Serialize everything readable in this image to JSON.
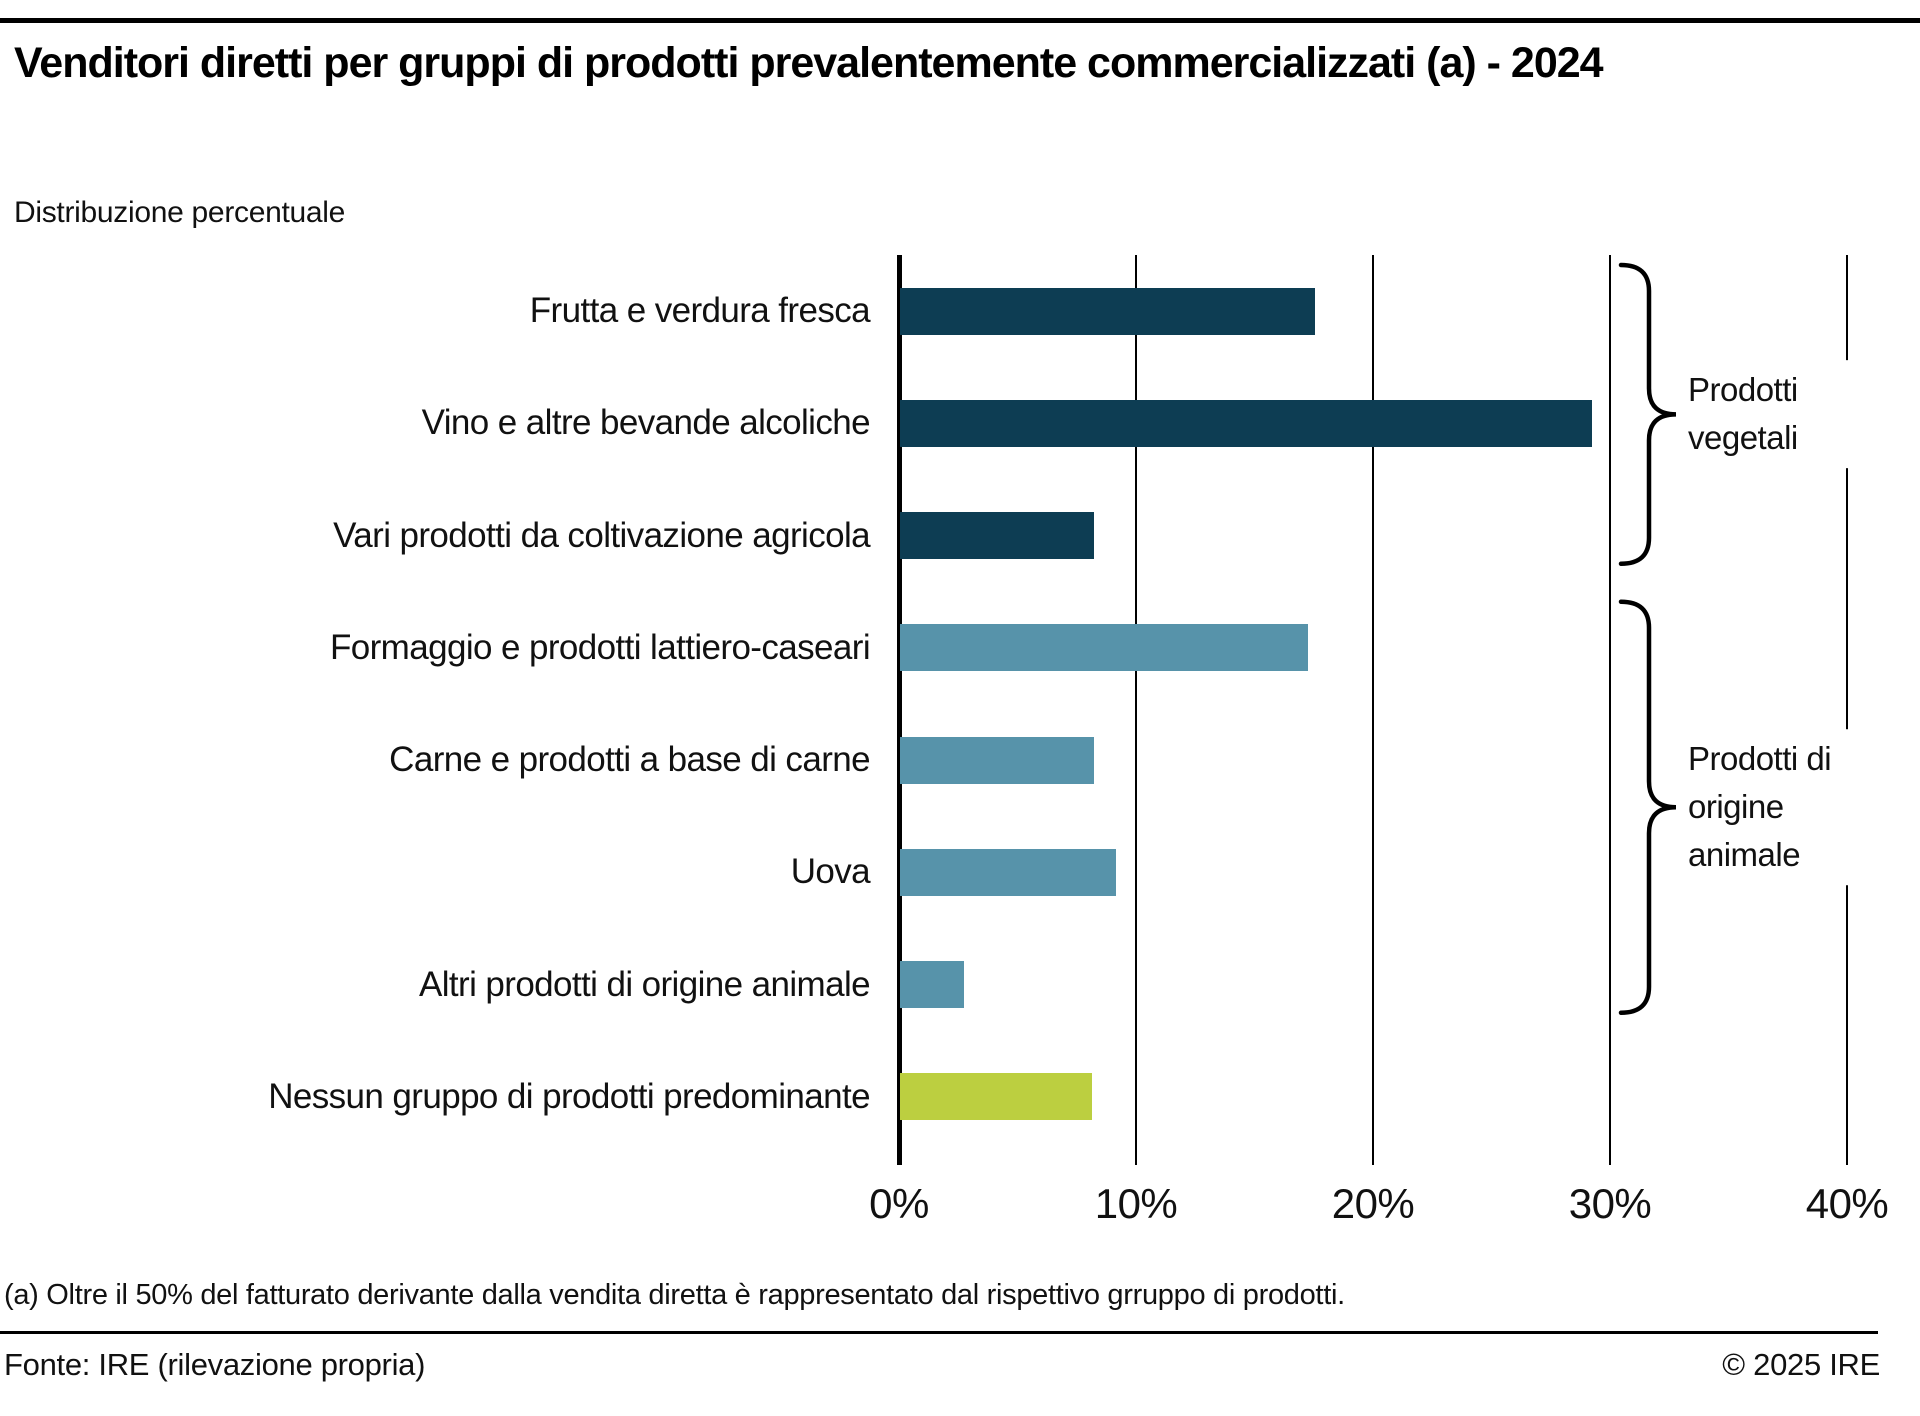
{
  "chart_data": {
    "type": "bar",
    "orientation": "horizontal",
    "title": "Venditori diretti per gruppi di prodotti prevalentemente commercializzati (a) - 2024",
    "subtitle": "Distribuzione percentuale",
    "categories": [
      "Frutta e verdura fresca",
      "Vino e altre bevande alcoliche",
      "Vari prodotti da coltivazione agricola",
      "Formaggio e prodotti lattiero-caseari",
      "Carne e prodotti a base di carne",
      "Uova",
      "Altri prodotti di origine animale",
      "Nessun gruppo di prodotti predominante"
    ],
    "values": [
      17.5,
      29.2,
      8.2,
      17.2,
      8.2,
      9.1,
      2.7,
      8.1
    ],
    "unit": "%",
    "xlim": [
      0,
      40
    ],
    "x_ticks": [
      "0%",
      "10%",
      "20%",
      "30%",
      "40%"
    ],
    "grid": true,
    "bar_colors": [
      "#0d3d53",
      "#0d3d53",
      "#0d3d53",
      "#5793aa",
      "#5793aa",
      "#5793aa",
      "#5793aa",
      "#bccf40"
    ],
    "groups": [
      {
        "label": "Prodotti vegetali",
        "first_row": 0,
        "last_row": 2
      },
      {
        "label": "Prodotti di origine animale",
        "first_row": 3,
        "last_row": 6
      }
    ]
  },
  "colors": {
    "bar_dark_navy": "#0d3d53",
    "bar_steel_blue": "#5793aa",
    "bar_yellow_green": "#bccf40",
    "line": "#000000",
    "text": "#111111"
  },
  "footnote": "(a) Oltre il 50% del fatturato derivante dalla vendita diretta è rappresentato dal rispettivo grruppo di prodotti.",
  "footer": {
    "source": "Fonte: IRE (rilevazione propria)",
    "copyright": "© 2025 IRE"
  }
}
